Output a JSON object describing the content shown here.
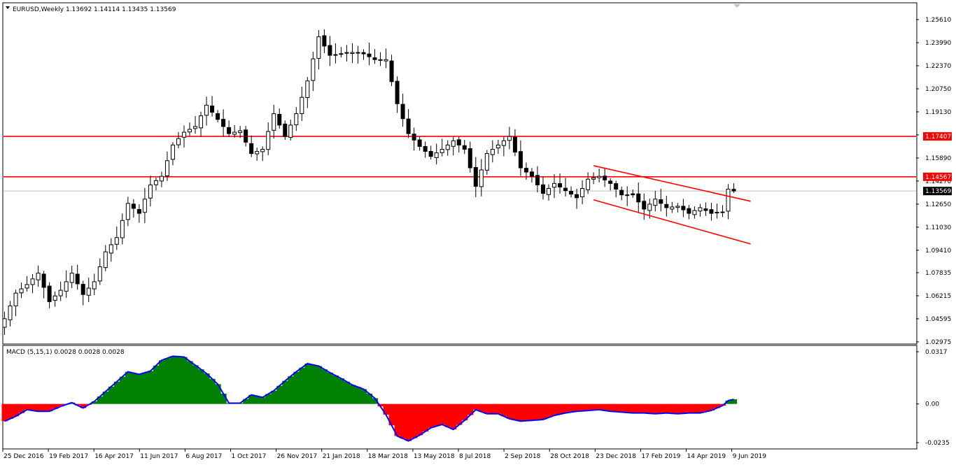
{
  "chart_data": [
    {
      "type": "candlestick",
      "symbol": "EURUSD",
      "timeframe": "Weekly",
      "header": "EURUSD,Weekly  1.13692 1.14114 1.13435 1.13569",
      "last_ohlc": {
        "open": 1.13692,
        "high": 1.14114,
        "low": 1.13435,
        "close": 1.13569
      },
      "ylim": [
        1.0297,
        1.2561
      ],
      "y_ticks": [
        "1.25610",
        "1.23990",
        "1.22370",
        "1.20750",
        "1.19130",
        "1.17510",
        "1.15890",
        "1.14270",
        "1.12650",
        "1.11030",
        "1.09410",
        "1.07835",
        "1.06215",
        "1.04595",
        "1.02975"
      ],
      "x_ticks": [
        "25 Dec 2016",
        "19 Feb 2017",
        "16 Apr 2017",
        "11 Jun 2017",
        "6 Aug 2017",
        "1 Oct 2017",
        "26 Nov 2017",
        "21 Jan 2018",
        "18 Mar 2018",
        "13 May 2018",
        "8 Jul 2018",
        "2 Sep 2018",
        "28 Oct 2018",
        "23 Dec 2018",
        "17 Feb 2019",
        "14 Apr 2019",
        "9 Jun 2019"
      ],
      "close_path": [
        [
          "2016-12-25",
          1.046
        ],
        [
          "2017-01-08",
          1.064
        ],
        [
          "2017-01-22",
          1.07
        ],
        [
          "2017-02-05",
          1.078
        ],
        [
          "2017-02-19",
          1.058
        ],
        [
          "2017-03-05",
          1.066
        ],
        [
          "2017-03-19",
          1.078
        ],
        [
          "2017-04-02",
          1.063
        ],
        [
          "2017-04-16",
          1.072
        ],
        [
          "2017-04-30",
          1.093
        ],
        [
          "2017-05-14",
          1.103
        ],
        [
          "2017-05-28",
          1.127
        ],
        [
          "2017-06-11",
          1.12
        ],
        [
          "2017-06-25",
          1.14
        ],
        [
          "2017-07-09",
          1.146
        ],
        [
          "2017-07-23",
          1.168
        ],
        [
          "2017-08-06",
          1.177
        ],
        [
          "2017-08-20",
          1.181
        ],
        [
          "2017-09-03",
          1.196
        ],
        [
          "2017-09-17",
          1.186
        ],
        [
          "2017-10-01",
          1.176
        ],
        [
          "2017-10-15",
          1.178
        ],
        [
          "2017-10-29",
          1.162
        ],
        [
          "2017-11-12",
          1.165
        ],
        [
          "2017-11-26",
          1.19
        ],
        [
          "2017-12-10",
          1.174
        ],
        [
          "2017-12-24",
          1.19
        ],
        [
          "2018-01-07",
          1.213
        ],
        [
          "2018-01-21",
          1.244
        ],
        [
          "2018-02-04",
          1.231
        ],
        [
          "2018-02-18",
          1.232
        ],
        [
          "2018-03-04",
          1.233
        ],
        [
          "2018-03-18",
          1.232
        ],
        [
          "2018-04-01",
          1.228
        ],
        [
          "2018-04-15",
          1.228
        ],
        [
          "2018-04-29",
          1.197
        ],
        [
          "2018-05-13",
          1.176
        ],
        [
          "2018-05-27",
          1.167
        ],
        [
          "2018-06-10",
          1.16
        ],
        [
          "2018-06-24",
          1.165
        ],
        [
          "2018-07-08",
          1.171
        ],
        [
          "2018-07-22",
          1.165
        ],
        [
          "2018-08-05",
          1.139
        ],
        [
          "2018-08-19",
          1.162
        ],
        [
          "2018-09-02",
          1.168
        ],
        [
          "2018-09-16",
          1.174
        ],
        [
          "2018-09-30",
          1.152
        ],
        [
          "2018-10-14",
          1.146
        ],
        [
          "2018-10-28",
          1.134
        ],
        [
          "2018-11-11",
          1.141
        ],
        [
          "2018-11-25",
          1.136
        ],
        [
          "2018-12-09",
          1.131
        ],
        [
          "2018-12-23",
          1.144
        ],
        [
          "2019-01-06",
          1.146
        ],
        [
          "2019-01-20",
          1.141
        ],
        [
          "2019-02-03",
          1.133
        ],
        [
          "2019-02-17",
          1.133
        ],
        [
          "2019-03-03",
          1.123
        ],
        [
          "2019-03-17",
          1.13
        ],
        [
          "2019-03-31",
          1.124
        ],
        [
          "2019-04-14",
          1.125
        ],
        [
          "2019-04-28",
          1.12
        ],
        [
          "2019-05-12",
          1.124
        ],
        [
          "2019-05-26",
          1.12
        ],
        [
          "2019-06-09",
          1.121
        ],
        [
          "2019-06-16",
          1.137
        ],
        [
          "2019-06-23",
          1.1357
        ]
      ],
      "candle_count": 131,
      "horizontal_lines": [
        {
          "value": 1.17407,
          "label": "1.17407",
          "color": "#ff0000"
        },
        {
          "value": 1.14567,
          "label": "1.14567",
          "color": "#ff0000"
        },
        {
          "value": 1.13569,
          "label": "1.13569",
          "color": "#c0c0c0"
        }
      ],
      "channel_lines": [
        {
          "from": [
            "2018-12-30",
            1.1535
          ],
          "to": [
            "2019-07-14",
            1.1285
          ],
          "color": "#ff0000"
        },
        {
          "from": [
            "2018-12-30",
            1.1295
          ],
          "to": [
            "2019-07-14",
            1.0985
          ],
          "color": "#ff0000"
        }
      ],
      "colors": {
        "bull_body": "#ffffff",
        "bear_body": "#000000",
        "wick": "#000000"
      }
    },
    {
      "type": "area",
      "name": "MACD (5,15,1)",
      "header": "MACD (5,15,1) 0.0028 0.0028 0.0028",
      "ylim": [
        -0.0235,
        0.0317
      ],
      "y_ticks": [
        "0.0317",
        "0.00",
        "-0.0235"
      ],
      "values": [
        [
          "2016-12-25",
          -0.0105
        ],
        [
          "2017-01-08",
          -0.0075
        ],
        [
          "2017-01-22",
          -0.0035
        ],
        [
          "2017-02-05",
          -0.0045
        ],
        [
          "2017-02-19",
          -0.0045
        ],
        [
          "2017-03-05",
          -0.0015
        ],
        [
          "2017-03-19",
          0.0008
        ],
        [
          "2017-04-02",
          -0.0025
        ],
        [
          "2017-04-16",
          0.0015
        ],
        [
          "2017-04-30",
          0.0075
        ],
        [
          "2017-05-14",
          0.0135
        ],
        [
          "2017-05-28",
          0.0195
        ],
        [
          "2017-06-11",
          0.018
        ],
        [
          "2017-06-25",
          0.02
        ],
        [
          "2017-07-09",
          0.0265
        ],
        [
          "2017-07-23",
          0.029
        ],
        [
          "2017-08-06",
          0.0285
        ],
        [
          "2017-08-20",
          0.0235
        ],
        [
          "2017-09-03",
          0.0185
        ],
        [
          "2017-09-17",
          0.012
        ],
        [
          "2017-10-01",
          0.0005
        ],
        [
          "2017-10-15",
          0.0005
        ],
        [
          "2017-10-29",
          0.0055
        ],
        [
          "2017-11-12",
          0.004
        ],
        [
          "2017-11-26",
          0.008
        ],
        [
          "2017-12-10",
          0.014
        ],
        [
          "2017-12-24",
          0.0195
        ],
        [
          "2018-01-07",
          0.0245
        ],
        [
          "2018-01-21",
          0.023
        ],
        [
          "2018-02-04",
          0.019
        ],
        [
          "2018-02-18",
          0.0155
        ],
        [
          "2018-03-04",
          0.0115
        ],
        [
          "2018-03-18",
          0.009
        ],
        [
          "2018-04-01",
          0.0035
        ],
        [
          "2018-04-15",
          -0.0065
        ],
        [
          "2018-04-29",
          -0.0195
        ],
        [
          "2018-05-13",
          -0.0225
        ],
        [
          "2018-05-27",
          -0.019
        ],
        [
          "2018-06-10",
          -0.0145
        ],
        [
          "2018-06-24",
          -0.0125
        ],
        [
          "2018-07-08",
          -0.0155
        ],
        [
          "2018-07-22",
          -0.01
        ],
        [
          "2018-08-05",
          -0.0035
        ],
        [
          "2018-08-19",
          -0.006
        ],
        [
          "2018-09-02",
          -0.006
        ],
        [
          "2018-09-16",
          -0.009
        ],
        [
          "2018-09-30",
          -0.0105
        ],
        [
          "2018-10-14",
          -0.01
        ],
        [
          "2018-10-28",
          -0.0095
        ],
        [
          "2018-11-11",
          -0.007
        ],
        [
          "2018-11-25",
          -0.0055
        ],
        [
          "2018-12-09",
          -0.0045
        ],
        [
          "2018-12-23",
          -0.004
        ],
        [
          "2019-01-06",
          -0.0035
        ],
        [
          "2019-01-20",
          -0.0045
        ],
        [
          "2019-02-03",
          -0.005
        ],
        [
          "2019-02-17",
          -0.0055
        ],
        [
          "2019-03-03",
          -0.0055
        ],
        [
          "2019-03-17",
          -0.006
        ],
        [
          "2019-03-31",
          -0.0055
        ],
        [
          "2019-04-14",
          -0.006
        ],
        [
          "2019-04-28",
          -0.0055
        ],
        [
          "2019-05-12",
          -0.0055
        ],
        [
          "2019-05-26",
          -0.004
        ],
        [
          "2019-06-09",
          -0.001
        ],
        [
          "2019-06-16",
          0.002
        ],
        [
          "2019-06-23",
          0.0028
        ]
      ],
      "colors": {
        "positive": "#008000",
        "negative": "#ff0000",
        "line": "#0000ff"
      }
    }
  ]
}
